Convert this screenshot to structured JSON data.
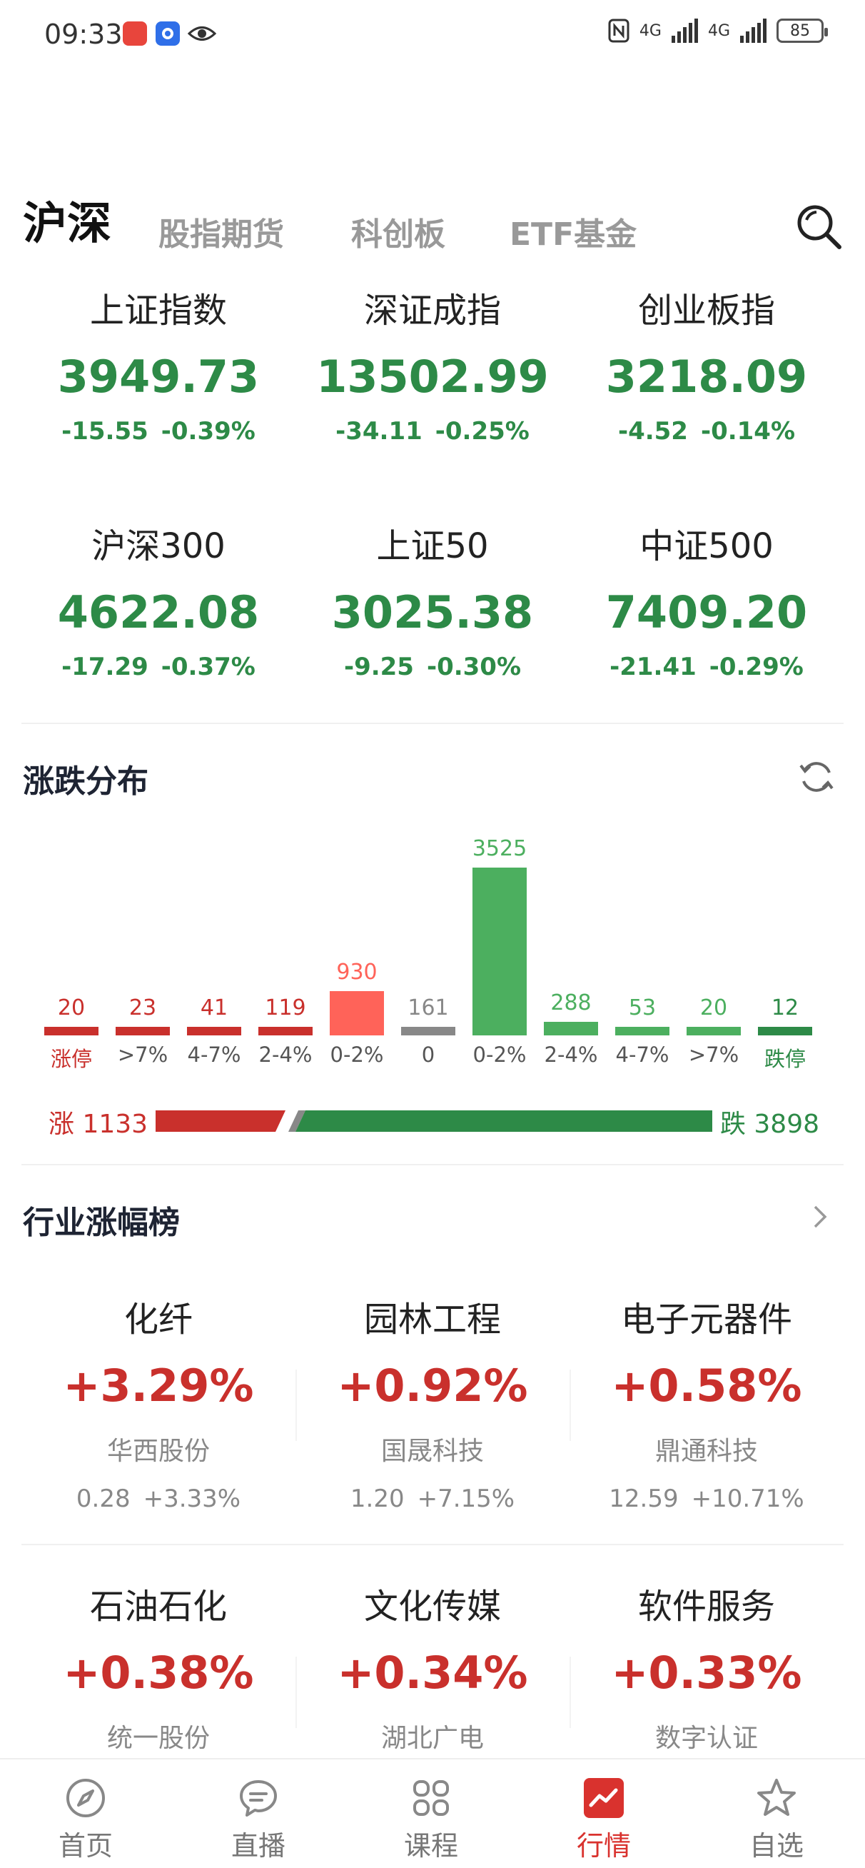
{
  "status_bar": {
    "time": "09:33",
    "network1": "4G",
    "network2": "4G",
    "battery": "85",
    "icons": [
      "app-red-icon",
      "app-blue-icon",
      "eye-icon",
      "nfc-icon",
      "signal-icon",
      "signal-icon",
      "battery-icon"
    ]
  },
  "tabs": [
    {
      "label": "沪深",
      "active": true
    },
    {
      "label": "股指期货",
      "active": false
    },
    {
      "label": "科创板",
      "active": false
    },
    {
      "label": "ETF基金",
      "active": false
    }
  ],
  "indices": [
    {
      "name": "上证指数",
      "value": "3949.73",
      "change": "-15.55",
      "pct": "-0.39%"
    },
    {
      "name": "深证成指",
      "value": "13502.99",
      "change": "-34.11",
      "pct": "-0.25%"
    },
    {
      "name": "创业板指",
      "value": "3218.09",
      "change": "-4.52",
      "pct": "-0.14%"
    },
    {
      "name": "沪深300",
      "value": "4622.08",
      "change": "-17.29",
      "pct": "-0.37%"
    },
    {
      "name": "上证50",
      "value": "3025.38",
      "change": "-9.25",
      "pct": "-0.30%"
    },
    {
      "name": "中证500",
      "value": "7409.20",
      "change": "-21.41",
      "pct": "-0.29%"
    }
  ],
  "distribution": {
    "title": "涨跌分布",
    "up_label": "涨 1133",
    "down_label": "跌 3898",
    "up_count": 1133,
    "down_count": 3898,
    "colors": {
      "up_dark": "#c9302c",
      "up_light": "#ff6359",
      "flat": "#888888",
      "down_light": "#4caf5f",
      "down_dark": "#2d8a47"
    },
    "bars": [
      {
        "label": "涨停",
        "value": 20,
        "tone": "up_dark"
      },
      {
        "label": ">7%",
        "value": 23,
        "tone": "up_dark"
      },
      {
        "label": "4-7%",
        "value": 41,
        "tone": "up_dark"
      },
      {
        "label": "2-4%",
        "value": 119,
        "tone": "up_dark"
      },
      {
        "label": "0-2%",
        "value": 930,
        "tone": "up_light"
      },
      {
        "label": "0",
        "value": 161,
        "tone": "flat"
      },
      {
        "label": "0-2%",
        "value": 3525,
        "tone": "down_light"
      },
      {
        "label": "2-4%",
        "value": 288,
        "tone": "down_light"
      },
      {
        "label": "4-7%",
        "value": 53,
        "tone": "down_light"
      },
      {
        "label": ">7%",
        "value": 20,
        "tone": "down_light"
      },
      {
        "label": "跌停",
        "value": 12,
        "tone": "down_dark"
      }
    ]
  },
  "industry": {
    "title": "行业涨幅榜",
    "items": [
      {
        "name": "化纤",
        "pct": "+3.29%",
        "stock": "华西股份",
        "price": "0.28",
        "stock_pct": "+3.33%"
      },
      {
        "name": "园林工程",
        "pct": "+0.92%",
        "stock": "国晟科技",
        "price": "1.20",
        "stock_pct": "+7.15%"
      },
      {
        "name": "电子元器件",
        "pct": "+0.58%",
        "stock": "鼎通科技",
        "price": "12.59",
        "stock_pct": "+10.71%"
      },
      {
        "name": "石油石化",
        "pct": "+0.38%",
        "stock": "统一股份",
        "price": "",
        "stock_pct": ""
      },
      {
        "name": "文化传媒",
        "pct": "+0.34%",
        "stock": "湖北广电",
        "price": "",
        "stock_pct": ""
      },
      {
        "name": "软件服务",
        "pct": "+0.33%",
        "stock": "数字认证",
        "price": "",
        "stock_pct": ""
      }
    ]
  },
  "bottom_nav": [
    {
      "label": "首页",
      "icon": "compass-icon",
      "active": false
    },
    {
      "label": "直播",
      "icon": "chat-icon",
      "active": false
    },
    {
      "label": "课程",
      "icon": "grid-icon",
      "active": false
    },
    {
      "label": "行情",
      "icon": "chart-icon",
      "active": true
    },
    {
      "label": "自选",
      "icon": "star-icon",
      "active": false
    }
  ]
}
